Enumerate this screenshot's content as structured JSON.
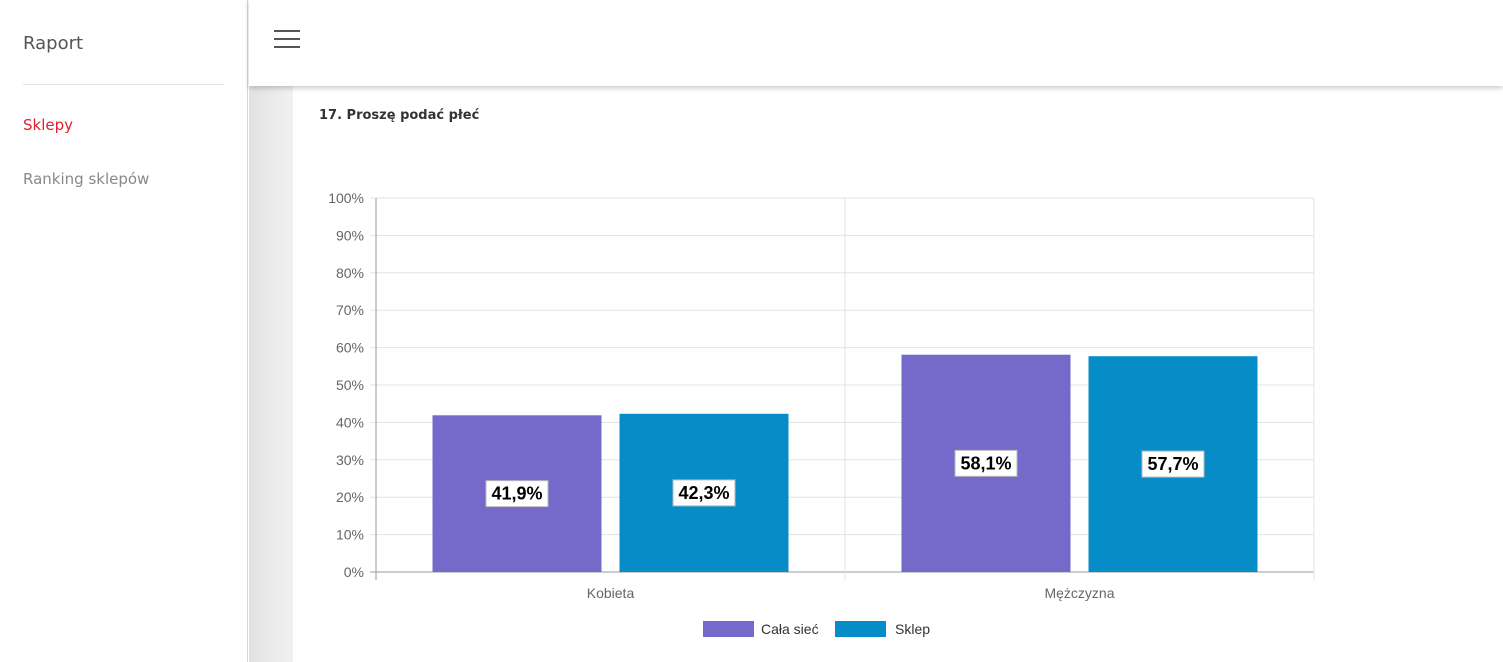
{
  "sidebar": {
    "brand": "Raport",
    "items": [
      {
        "label": "Sklepy",
        "active": true
      },
      {
        "label": "Ranking sklepów",
        "active": false
      }
    ]
  },
  "topbar": {
    "menu_icon": "hamburger-menu-icon"
  },
  "question": {
    "title": "17. Proszę podać płeć"
  },
  "colors": {
    "accent": "#e0202f",
    "series1": "#7569c9",
    "series2": "#068dc8"
  },
  "chart_data": {
    "type": "bar",
    "categories": [
      "Kobieta",
      "Mężczyzna"
    ],
    "series": [
      {
        "name": "Cała sieć",
        "values": [
          41.9,
          58.1
        ],
        "labels": [
          "41,9%",
          "58,1%"
        ],
        "color": "#7569c9"
      },
      {
        "name": "Sklep",
        "values": [
          42.3,
          57.7
        ],
        "labels": [
          "42,3%",
          "57,7%"
        ],
        "color": "#068dc8"
      }
    ],
    "ylim": [
      0,
      100
    ],
    "yticks": [
      "0%",
      "10%",
      "20%",
      "30%",
      "40%",
      "50%",
      "60%",
      "70%",
      "80%",
      "90%",
      "100%"
    ],
    "grid": true,
    "legend": "bottom"
  }
}
